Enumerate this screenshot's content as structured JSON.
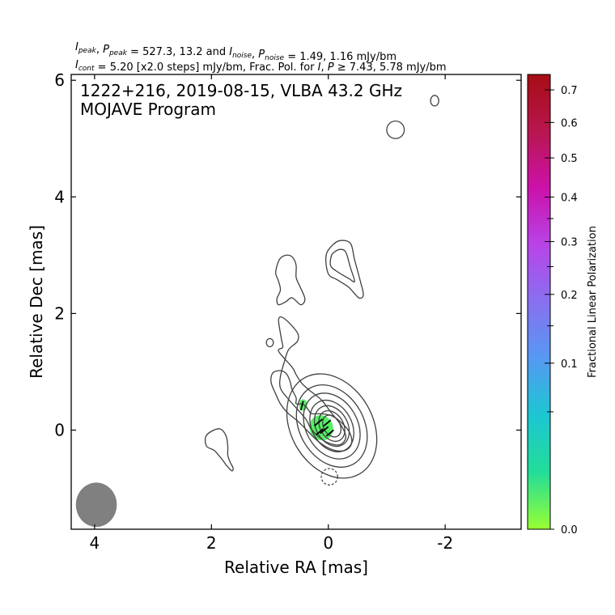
{
  "chart_data": {
    "type": "contour",
    "header_line1": {
      "parts": [
        {
          "t": "I",
          "i": true
        },
        {
          "t": "peak",
          "sub": true,
          "i": true
        },
        {
          "t": ", "
        },
        {
          "t": "P",
          "i": true
        },
        {
          "t": "peak",
          "sub": true,
          "i": true
        },
        {
          "t": " = 527.3, 13.2 and "
        },
        {
          "t": "I",
          "i": true
        },
        {
          "t": "noise",
          "sub": true,
          "i": true
        },
        {
          "t": ", "
        },
        {
          "t": "P",
          "i": true
        },
        {
          "t": "noise",
          "sub": true,
          "i": true
        },
        {
          "t": " = 1.49, 1.16 mJy/bm"
        }
      ]
    },
    "header_line2": {
      "parts": [
        {
          "t": "I",
          "i": true
        },
        {
          "t": "cont",
          "sub": true,
          "i": true
        },
        {
          "t": " = 5.20 [x2.0 steps] mJy/bm, Frac. Pol. for "
        },
        {
          "t": "I",
          "i": true
        },
        {
          "t": ", "
        },
        {
          "t": "P",
          "i": true
        },
        {
          "t": " ≥ 7.43, 5.78 mJy/bm"
        }
      ]
    },
    "title_line1": "1222+216, 2019-08-15, VLBA 43.2 GHz",
    "title_line2": "MOJAVE Program",
    "xlabel": "Relative RA [mas]",
    "ylabel": "Relative Dec [mas]",
    "xlim": [
      4.4,
      -3.3
    ],
    "ylim": [
      -1.7,
      6.1
    ],
    "xticks": [
      4,
      2,
      0,
      -2
    ],
    "xtick_labels": [
      "4",
      "2",
      "0",
      "-2"
    ],
    "yticks": [
      0,
      2,
      4,
      6
    ],
    "ytick_labels": [
      "0",
      "2",
      "4",
      "6"
    ],
    "colorbar": {
      "label": "Fractional Linear Polarization",
      "range": [
        0.0,
        0.75
      ],
      "scale": "sqrt",
      "ticks": [
        0.0,
        0.1,
        0.2,
        0.3,
        0.4,
        0.5,
        0.6,
        0.7
      ],
      "tick_labels": [
        "0.0",
        "0.1",
        "0.2",
        "0.3",
        "0.4",
        "0.5",
        "0.6",
        "0.7"
      ],
      "minor_ticks": [
        0.05,
        0.15,
        0.25,
        0.35
      ],
      "gradient": [
        "#99ff33",
        "#22dd99",
        "#1cc7d2",
        "#5599f2",
        "#8870f0",
        "#b844e8",
        "#cc11aa",
        "#b8164f",
        "#a60d14"
      ]
    },
    "core_contours": {
      "center": [
        -0.06,
        0.07
      ],
      "rx": [
        0.14,
        0.2,
        0.27,
        0.34,
        0.44,
        0.55,
        0.7
      ],
      "ry": [
        0.2,
        0.28,
        0.37,
        0.47,
        0.6,
        0.75,
        0.95
      ],
      "angle_deg": -30
    },
    "contours": [
      {
        "name": "jet-envelope",
        "closed": true,
        "points": [
          [
            0.55,
            0.45
          ],
          [
            0.45,
            0.45
          ],
          [
            0.38,
            0.4
          ],
          [
            0.33,
            0.33
          ],
          [
            0.28,
            0.28
          ],
          [
            0.12,
            0.28
          ],
          [
            -0.05,
            0.25
          ],
          [
            -0.2,
            0.15
          ],
          [
            -0.34,
            0.0
          ],
          [
            -0.4,
            -0.15
          ],
          [
            -0.38,
            -0.27
          ],
          [
            -0.28,
            -0.35
          ],
          [
            -0.12,
            -0.35
          ],
          [
            0.05,
            -0.28
          ],
          [
            0.2,
            -0.17
          ],
          [
            0.35,
            -0.02
          ],
          [
            0.52,
            0.15
          ],
          [
            0.7,
            0.3
          ],
          [
            0.82,
            0.45
          ],
          [
            0.9,
            0.62
          ],
          [
            0.98,
            0.82
          ],
          [
            0.95,
            0.98
          ],
          [
            0.82,
            1.02
          ],
          [
            0.72,
            0.97
          ],
          [
            0.66,
            0.85
          ],
          [
            0.62,
            0.7
          ],
          [
            0.55,
            0.55
          ]
        ]
      },
      {
        "name": "jet-outer",
        "closed": true,
        "points": [
          [
            0.85,
            1.35
          ],
          [
            0.78,
            1.42
          ],
          [
            0.8,
            1.55
          ],
          [
            0.84,
            1.78
          ],
          [
            0.85,
            1.9
          ],
          [
            0.8,
            1.94
          ],
          [
            0.65,
            1.82
          ],
          [
            0.52,
            1.65
          ],
          [
            0.53,
            1.52
          ],
          [
            0.68,
            1.38
          ],
          [
            0.75,
            1.18
          ],
          [
            0.82,
            0.92
          ],
          [
            0.82,
            0.72
          ],
          [
            0.7,
            0.55
          ],
          [
            0.55,
            0.38
          ],
          [
            0.38,
            0.18
          ],
          [
            0.3,
            0.03
          ],
          [
            0.18,
            -0.1
          ],
          [
            0.0,
            -0.22
          ],
          [
            -0.2,
            -0.25
          ],
          [
            -0.3,
            -0.12
          ],
          [
            -0.22,
            0.08
          ],
          [
            -0.05,
            0.3
          ],
          [
            0.12,
            0.52
          ],
          [
            0.32,
            0.68
          ],
          [
            0.45,
            0.8
          ],
          [
            0.55,
            0.95
          ],
          [
            0.62,
            1.08
          ]
        ]
      },
      {
        "name": "north-blob",
        "closed": true,
        "points": [
          [
            0.78,
            2.98
          ],
          [
            0.85,
            2.9
          ],
          [
            0.9,
            2.7
          ],
          [
            0.85,
            2.55
          ],
          [
            0.82,
            2.4
          ],
          [
            0.88,
            2.25
          ],
          [
            0.85,
            2.15
          ],
          [
            0.73,
            2.2
          ],
          [
            0.62,
            2.27
          ],
          [
            0.47,
            2.15
          ],
          [
            0.4,
            2.25
          ],
          [
            0.48,
            2.45
          ],
          [
            0.55,
            2.62
          ],
          [
            0.55,
            2.82
          ],
          [
            0.6,
            2.95
          ],
          [
            0.68,
            3.0
          ]
        ]
      },
      {
        "name": "northeast-blob-outer",
        "closed": true,
        "points": [
          [
            -0.05,
            3.15
          ],
          [
            -0.2,
            3.25
          ],
          [
            -0.38,
            3.2
          ],
          [
            -0.45,
            2.92
          ],
          [
            -0.55,
            2.55
          ],
          [
            -0.6,
            2.32
          ],
          [
            -0.52,
            2.27
          ],
          [
            -0.35,
            2.45
          ],
          [
            -0.15,
            2.58
          ],
          [
            0.0,
            2.68
          ],
          [
            0.04,
            2.98
          ]
        ]
      },
      {
        "name": "northeast-blob-inner",
        "closed": true,
        "points": [
          [
            -0.1,
            3.05
          ],
          [
            -0.2,
            3.1
          ],
          [
            -0.3,
            3.05
          ],
          [
            -0.38,
            2.78
          ],
          [
            -0.45,
            2.55
          ],
          [
            -0.35,
            2.6
          ],
          [
            -0.15,
            2.72
          ],
          [
            -0.04,
            2.82
          ],
          [
            -0.05,
            2.98
          ]
        ]
      },
      {
        "name": "west-blob",
        "closed": true,
        "points": [
          [
            2.1,
            -0.12
          ],
          [
            2.0,
            -0.02
          ],
          [
            1.85,
            0.02
          ],
          [
            1.75,
            -0.1
          ],
          [
            1.72,
            -0.28
          ],
          [
            1.72,
            -0.43
          ],
          [
            1.68,
            -0.55
          ],
          [
            1.63,
            -0.65
          ],
          [
            1.65,
            -0.7
          ],
          [
            1.73,
            -0.62
          ],
          [
            1.82,
            -0.5
          ],
          [
            1.95,
            -0.35
          ],
          [
            2.08,
            -0.28
          ]
        ]
      }
    ],
    "small_contours": [
      {
        "name": "knot-contour",
        "x": 1.0,
        "y": 1.5,
        "rx": 0.06,
        "ry": 0.07,
        "angle_deg": 0
      },
      {
        "name": "north-small-blob",
        "x": -1.15,
        "y": 5.15,
        "rx": 0.15,
        "ry": 0.15,
        "angle_deg": 0
      },
      {
        "name": "north-tiny-blob",
        "x": -1.82,
        "y": 5.65,
        "rx": 0.07,
        "ry": 0.09,
        "angle_deg": 0
      }
    ],
    "negative_contours": [
      {
        "name": "negative-contour",
        "x": -0.02,
        "y": -0.8,
        "rx": 0.14,
        "ry": 0.14
      }
    ],
    "polarization_patches": [
      {
        "name": "pol-patch-core",
        "x": 0.12,
        "y": 0.04,
        "rx": 0.2,
        "ry": 0.22,
        "angle_deg": -25,
        "frac": 0.03,
        "color": "#55ee66"
      },
      {
        "name": "pol-patch-jet",
        "x": 0.43,
        "y": 0.43,
        "rx": 0.07,
        "ry": 0.1,
        "angle_deg": 0,
        "frac": 0.02,
        "color": "#55ee66"
      }
    ],
    "evpa_vectors": [
      {
        "x": 0.17,
        "y": 0.13,
        "angle_deg": 40,
        "len": 0.09
      },
      {
        "x": 0.07,
        "y": 0.0,
        "angle_deg": 40,
        "len": 0.09
      },
      {
        "x": 0.15,
        "y": -0.03,
        "angle_deg": 40,
        "len": 0.08
      },
      {
        "x": 0.02,
        "y": 0.12,
        "angle_deg": 40,
        "len": 0.08
      },
      {
        "x": -0.03,
        "y": -0.05,
        "angle_deg": 40,
        "len": 0.08
      },
      {
        "x": 0.45,
        "y": 0.42,
        "angle_deg": 75,
        "len": 0.08
      }
    ],
    "beam": {
      "x": 3.97,
      "y": -1.28,
      "bmaj": 0.38,
      "bmin": 0.35,
      "pa_deg": 0,
      "color": "#808080"
    },
    "colors": {
      "contour": "#404040",
      "evpa": "#000000"
    }
  }
}
